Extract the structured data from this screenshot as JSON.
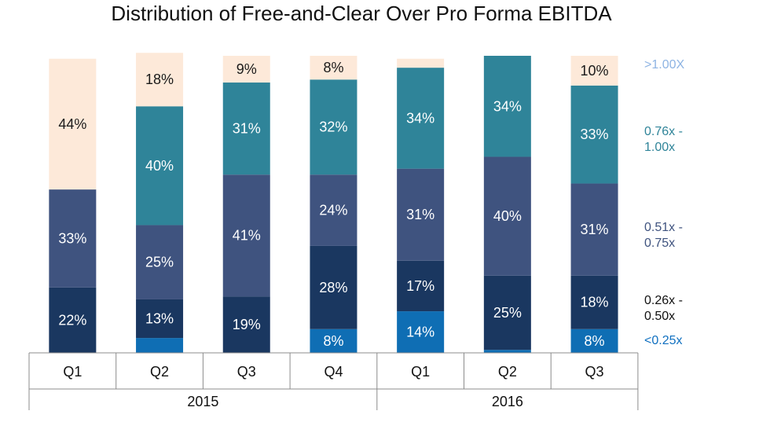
{
  "chart_data": {
    "type": "bar",
    "stacked": true,
    "title": "Distribution of Free-and-Clear Over Pro Forma EBITDA",
    "categories": [
      "Q1",
      "Q2",
      "Q3",
      "Q4",
      "Q1",
      "Q2",
      "Q3"
    ],
    "groups": [
      {
        "label": "2015",
        "count": 4
      },
      {
        "label": "2016",
        "count": 3
      }
    ],
    "ylim": [
      0,
      100
    ],
    "grid": false,
    "legend_position": "right",
    "series": [
      {
        "name": "<0.25x",
        "legend_label": "<0.25x",
        "color": "#0f6eb4",
        "text_color": "#ffffff",
        "values": [
          0,
          5,
          0,
          8,
          14,
          1,
          8
        ],
        "labels": [
          "",
          "",
          "",
          "8%",
          "14%",
          "",
          "8%"
        ]
      },
      {
        "name": "0.26x - 0.50x",
        "legend_label": "0.26x - 0.50x",
        "color": "#1a3760",
        "text_color": "#ffffff",
        "values": [
          22,
          13,
          19,
          28,
          17,
          25,
          18
        ],
        "labels": [
          "22%",
          "13%",
          "19%",
          "28%",
          "17%",
          "25%",
          "18%"
        ]
      },
      {
        "name": "0.51x - 0.75x",
        "legend_label": "0.51x - 0.75x",
        "color": "#3f537f",
        "text_color": "#ffffff",
        "values": [
          33,
          25,
          41,
          24,
          31,
          40,
          31
        ],
        "labels": [
          "33%",
          "25%",
          "41%",
          "24%",
          "31%",
          "40%",
          "31%"
        ]
      },
      {
        "name": "0.76x - 1.00x",
        "legend_label": "0.76x - 1.00x",
        "color": "#2f8499",
        "text_color": "#ffffff",
        "values": [
          0,
          40,
          31,
          32,
          34,
          34,
          33
        ],
        "labels": [
          "",
          "40%",
          "31%",
          "32%",
          "34%",
          "34%",
          "33%"
        ]
      },
      {
        "name": ">1.00X",
        "legend_label": ">1.00X",
        "color": "#fde9d9",
        "text_color": "#1a1a1a",
        "values": [
          44,
          18,
          9,
          8,
          3,
          0,
          10
        ],
        "labels": [
          "44%",
          "18%",
          "9%",
          "8%",
          "",
          "",
          "10%"
        ]
      }
    ],
    "legend_colors": {
      "<0.25x": "#1070c0",
      "0.26x - 0.50x": "#111111",
      "0.51x - 0.75x": "#3f537f",
      "0.76x - 1.00x": "#2f8499",
      ">1.00X": "#8eb4e3"
    }
  }
}
